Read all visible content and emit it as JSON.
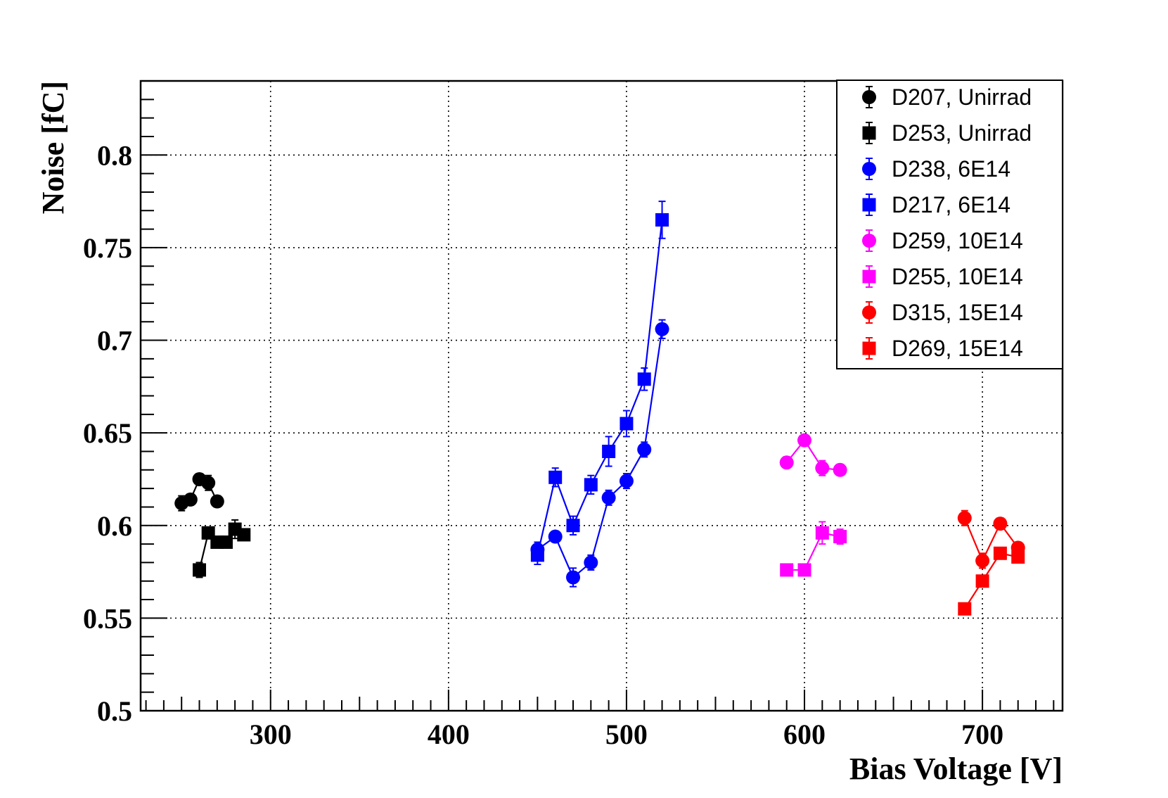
{
  "chart_data": {
    "type": "scatter",
    "title": "",
    "xlabel": "Bias Voltage [V]",
    "ylabel": "Noise [fC]",
    "xlim": [
      227,
      745
    ],
    "ylim": [
      0.5,
      0.84
    ],
    "grid": true,
    "legend_position": "top-right",
    "x_ticks": [
      300,
      400,
      500,
      600,
      700
    ],
    "x_tick_labels": [
      "300",
      "400",
      "500",
      "600",
      "700"
    ],
    "y_ticks": [
      0.5,
      0.55,
      0.6,
      0.65,
      0.7,
      0.75,
      0.8
    ],
    "y_tick_labels": [
      "0.5",
      "0.55",
      "0.6",
      "0.65",
      "0.7",
      "0.75",
      "0.8"
    ],
    "series": [
      {
        "name": "D207, Unirrad",
        "color": "#000000",
        "marker": "circle",
        "connected": true,
        "x": [
          250,
          255,
          260,
          265,
          270
        ],
        "y": [
          0.612,
          0.614,
          0.625,
          0.623,
          0.613
        ],
        "err": [
          0.004,
          0.003,
          0.003,
          0.004,
          0.003
        ]
      },
      {
        "name": "D253, Unirrad",
        "color": "#000000",
        "marker": "square",
        "connected": true,
        "x": [
          260,
          265,
          270,
          275,
          280,
          285
        ],
        "y": [
          0.576,
          0.596,
          0.591,
          0.591,
          0.598,
          0.595
        ],
        "err": [
          0.004,
          0.003,
          0.003,
          0.003,
          0.005,
          0.003
        ]
      },
      {
        "name": "D238, 6E14",
        "color": "#0000ff",
        "marker": "circle",
        "connected": true,
        "x": [
          450,
          460,
          470,
          480,
          490,
          500,
          510,
          520
        ],
        "y": [
          0.587,
          0.594,
          0.572,
          0.58,
          0.615,
          0.624,
          0.641,
          0.706
        ],
        "err": [
          0.004,
          0.003,
          0.005,
          0.004,
          0.004,
          0.004,
          0.004,
          0.005
        ]
      },
      {
        "name": "D217, 6E14",
        "color": "#0000ff",
        "marker": "square",
        "connected": true,
        "x": [
          450,
          460,
          470,
          480,
          490,
          500,
          510,
          520
        ],
        "y": [
          0.584,
          0.626,
          0.6,
          0.622,
          0.64,
          0.655,
          0.679,
          0.765
        ],
        "err": [
          0.005,
          0.005,
          0.005,
          0.005,
          0.008,
          0.007,
          0.006,
          0.01
        ]
      },
      {
        "name": "D259, 10E14",
        "color": "#ff00ff",
        "marker": "circle",
        "connected": true,
        "x": [
          590,
          600,
          610,
          620
        ],
        "y": [
          0.634,
          0.646,
          0.631,
          0.63
        ],
        "err": [
          0.003,
          0.003,
          0.004,
          0.003
        ]
      },
      {
        "name": "D255, 10E14",
        "color": "#ff00ff",
        "marker": "square",
        "connected": true,
        "x": [
          590,
          600,
          610,
          620
        ],
        "y": [
          0.576,
          0.576,
          0.596,
          0.594
        ],
        "err": [
          0.003,
          0.003,
          0.006,
          0.004
        ]
      },
      {
        "name": "D315, 15E14",
        "color": "#ff0000",
        "marker": "circle",
        "connected": true,
        "x": [
          690,
          700,
          710,
          720
        ],
        "y": [
          0.604,
          0.581,
          0.601,
          0.588
        ],
        "err": [
          0.004,
          0.004,
          0.003,
          0.003
        ]
      },
      {
        "name": "D269, 15E14",
        "color": "#ff0000",
        "marker": "square",
        "connected": true,
        "x": [
          690,
          700,
          710,
          720
        ],
        "y": [
          0.555,
          0.57,
          0.585,
          0.583
        ],
        "err": [
          0.003,
          0.003,
          0.003,
          0.003
        ]
      }
    ]
  }
}
